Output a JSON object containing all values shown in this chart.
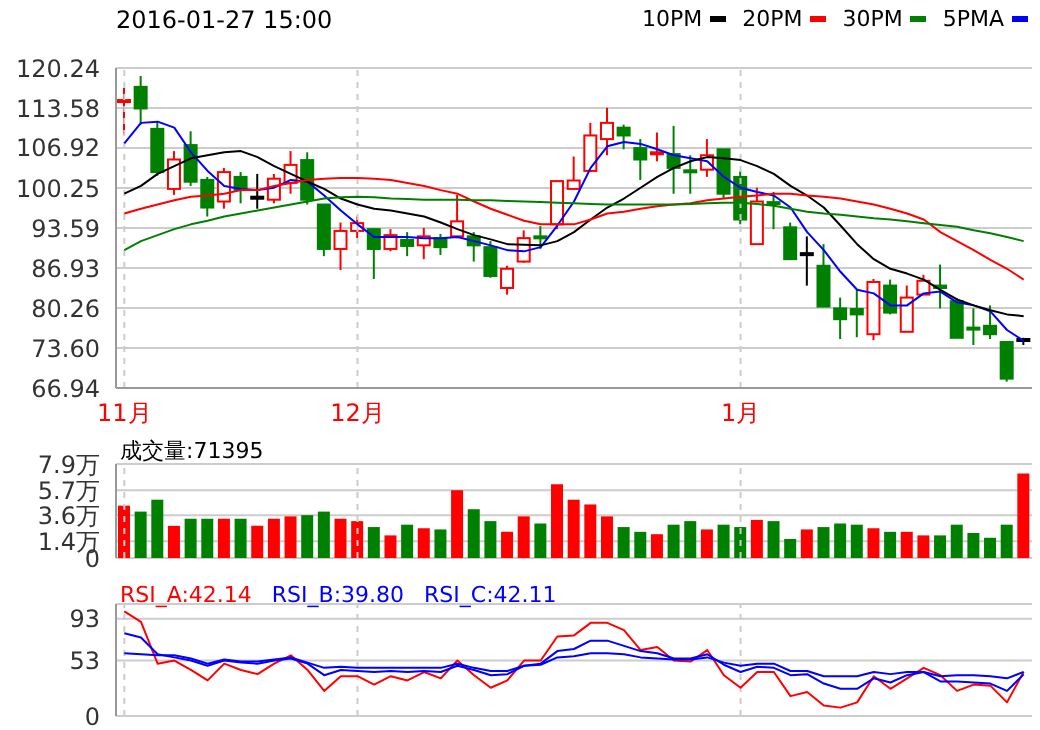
{
  "chart_data": [
    {
      "type": "candlestick",
      "title": "2016-01-27 15:00",
      "categories": [
        "11月",
        null,
        null,
        null,
        null,
        null,
        null,
        null,
        null,
        null,
        null,
        null,
        null,
        null,
        "12月",
        null,
        null,
        null,
        null,
        null,
        null,
        null,
        null,
        null,
        null,
        null,
        null,
        null,
        null,
        null,
        null,
        null,
        null,
        null,
        null,
        null,
        null,
        "1月",
        null,
        null,
        null,
        null,
        null,
        null,
        null,
        null,
        null,
        null,
        null,
        null,
        null,
        null,
        null,
        null,
        null
      ],
      "ohlc": [
        [
          114.9,
          116.9,
          109.2,
          114.9
        ],
        [
          117.1,
          118.9,
          110.8,
          113.5
        ],
        [
          110.1,
          111.3,
          102.3,
          102.9
        ],
        [
          100.1,
          106.4,
          99.1,
          105.0
        ],
        [
          107.4,
          109.7,
          100.6,
          101.3
        ],
        [
          101.6,
          102.1,
          95.5,
          97.0
        ],
        [
          98.0,
          103.6,
          96.8,
          102.9
        ],
        [
          102.1,
          102.9,
          97.7,
          99.9
        ],
        [
          98.8,
          102.6,
          96.8,
          98.8
        ],
        [
          98.3,
          102.6,
          97.7,
          101.8
        ],
        [
          101.1,
          106.4,
          99.3,
          104.1
        ],
        [
          104.9,
          106.2,
          97.5,
          98.3
        ],
        [
          97.5,
          97.5,
          88.9,
          90.1
        ],
        [
          90.1,
          94.5,
          86.6,
          93.1
        ],
        [
          93.1,
          95.5,
          91.9,
          94.4
        ],
        [
          93.4,
          93.4,
          85.1,
          90.1
        ],
        [
          90.1,
          93.4,
          89.7,
          92.4
        ],
        [
          91.6,
          92.9,
          88.9,
          90.6
        ],
        [
          90.7,
          93.6,
          88.4,
          92.2
        ],
        [
          91.9,
          92.6,
          89.1,
          90.4
        ],
        [
          92.2,
          99.1,
          91.9,
          94.7
        ],
        [
          92.2,
          92.9,
          88.0,
          90.7
        ],
        [
          90.4,
          91.4,
          85.3,
          85.6
        ],
        [
          83.6,
          87.3,
          82.5,
          86.8
        ],
        [
          88.0,
          93.2,
          87.8,
          91.9
        ],
        [
          92.2,
          93.9,
          90.1,
          91.9
        ],
        [
          94.2,
          101.4,
          93.4,
          101.4
        ],
        [
          100.1,
          105.5,
          100.1,
          101.5
        ],
        [
          103.1,
          111.1,
          102.9,
          109.0
        ],
        [
          108.4,
          113.6,
          105.7,
          111.1
        ],
        [
          110.3,
          110.8,
          106.7,
          109.0
        ],
        [
          106.9,
          108.4,
          101.6,
          105.0
        ],
        [
          105.9,
          109.5,
          104.7,
          106.2
        ],
        [
          105.9,
          110.6,
          99.3,
          103.6
        ],
        [
          103.2,
          105.7,
          99.3,
          103.0
        ],
        [
          103.3,
          108.4,
          102.1,
          105.7
        ],
        [
          106.7,
          106.7,
          98.5,
          99.3
        ],
        [
          102.1,
          103.1,
          94.2,
          95.0
        ],
        [
          90.9,
          100.3,
          90.9,
          98.0
        ],
        [
          97.9,
          99.6,
          93.4,
          97.7
        ],
        [
          93.7,
          94.5,
          88.4,
          88.4
        ],
        [
          89.4,
          92.2,
          84.0,
          89.4
        ],
        [
          87.3,
          90.9,
          80.5,
          80.5
        ],
        [
          80.2,
          82.0,
          75.1,
          78.4
        ],
        [
          80.1,
          83.3,
          75.4,
          79.2
        ],
        [
          75.9,
          85.1,
          74.9,
          84.6
        ],
        [
          84.0,
          85.0,
          79.2,
          79.5
        ],
        [
          76.3,
          84.0,
          76.3,
          82.0
        ],
        [
          82.5,
          85.8,
          82.5,
          84.8
        ],
        [
          84.0,
          87.5,
          80.2,
          83.6
        ],
        [
          81.4,
          81.9,
          75.3,
          75.3
        ],
        [
          77.0,
          80.2,
          74.1,
          76.9
        ],
        [
          77.3,
          80.7,
          75.1,
          75.9
        ],
        [
          74.6,
          74.6,
          68.0,
          68.5
        ],
        [
          75.1,
          75.3,
          74.1,
          75.1
        ]
      ],
      "colors": [
        "#ff0000",
        "#008000",
        "#008000",
        "#ff0000",
        "#008000",
        "#008000",
        "#ff0000",
        "#008000",
        "#000000",
        "#ff0000",
        "#ff0000",
        "#008000",
        "#008000",
        "#ff0000",
        "#ff0000",
        "#008000",
        "#ff0000",
        "#008000",
        "#ff0000",
        "#008000",
        "#ff0000",
        "#008000",
        "#008000",
        "#ff0000",
        "#ff0000",
        "#008000",
        "#ff0000",
        "#ff0000",
        "#ff0000",
        "#ff0000",
        "#008000",
        "#008000",
        "#ff0000",
        "#008000",
        "#008000",
        "#ff0000",
        "#008000",
        "#008000",
        "#ff0000",
        "#008000",
        "#008000",
        "#000000",
        "#008000",
        "#008000",
        "#008000",
        "#ff0000",
        "#008000",
        "#ff0000",
        "#ff0000",
        "#008000",
        "#008000",
        "#008000",
        "#008000",
        "#008000",
        "#000000"
      ],
      "series": [
        {
          "name": "5PMA",
          "type": "line",
          "color": "#0000ff",
          "values": [
            107.7,
            111.1,
            111.3,
            110.3,
            106.2,
            103.1,
            100.6,
            100.1,
            99.9,
            100.3,
            101.6,
            101.3,
            99.0,
            96.5,
            94.2,
            92.1,
            92.1,
            92.1,
            91.9,
            91.9,
            92.1,
            91.4,
            90.7,
            89.9,
            89.7,
            90.4,
            94.0,
            98.0,
            103.6,
            107.2,
            107.9,
            107.6,
            106.7,
            105.7,
            105.2,
            104.7,
            102.1,
            100.3,
            99.6,
            99.0,
            97.0,
            92.9,
            89.9,
            86.3,
            83.3,
            82.7,
            80.7,
            80.7,
            82.7,
            83.0,
            81.2,
            80.7,
            79.7,
            76.6,
            74.8
          ]
        },
        {
          "name": "10PM",
          "type": "line",
          "color": "#000000",
          "values": [
            99.3,
            100.6,
            102.6,
            103.9,
            105.2,
            105.7,
            106.2,
            106.4,
            105.4,
            103.9,
            102.6,
            101.3,
            100.1,
            98.5,
            97.5,
            96.8,
            96.5,
            96.0,
            95.5,
            94.5,
            93.4,
            92.4,
            91.7,
            90.9,
            90.8,
            90.7,
            91.4,
            92.9,
            95.0,
            97.0,
            98.5,
            100.3,
            102.1,
            103.6,
            104.7,
            105.4,
            105.2,
            104.9,
            103.9,
            102.6,
            100.6,
            99.0,
            97.0,
            94.0,
            90.9,
            88.4,
            86.8,
            86.0,
            85.0,
            83.3,
            81.7,
            80.7,
            79.9,
            79.2,
            78.9
          ]
        },
        {
          "name": "20PM",
          "type": "line",
          "color": "#ff0000",
          "values": [
            96.0,
            96.8,
            97.5,
            98.2,
            98.8,
            99.0,
            99.3,
            99.9,
            99.9,
            100.6,
            101.1,
            101.6,
            101.8,
            101.9,
            101.9,
            101.8,
            101.6,
            101.1,
            100.6,
            99.9,
            99.3,
            98.0,
            96.8,
            95.8,
            94.8,
            94.2,
            94.2,
            94.2,
            95.0,
            96.0,
            96.3,
            96.8,
            97.2,
            97.5,
            97.7,
            98.2,
            98.5,
            98.8,
            99.0,
            99.3,
            99.3,
            99.0,
            98.8,
            98.5,
            98.0,
            97.5,
            96.8,
            96.0,
            95.0,
            92.9,
            91.4,
            89.9,
            88.3,
            86.8,
            85.0
          ]
        },
        {
          "name": "30PM",
          "type": "line",
          "color": "#008000",
          "values": [
            89.9,
            91.4,
            92.4,
            93.4,
            94.2,
            94.8,
            95.5,
            96.0,
            96.5,
            97.0,
            97.5,
            98.0,
            98.5,
            98.7,
            98.8,
            98.7,
            98.5,
            98.4,
            98.3,
            98.3,
            98.3,
            98.2,
            98.2,
            98.1,
            98.0,
            97.9,
            97.8,
            97.7,
            97.6,
            97.5,
            97.5,
            97.5,
            97.5,
            97.5,
            97.6,
            97.7,
            97.8,
            97.8,
            97.6,
            97.3,
            96.8,
            96.3,
            96.0,
            95.8,
            95.5,
            95.2,
            95.0,
            94.7,
            94.4,
            94.1,
            93.8,
            93.2,
            92.7,
            92.1,
            91.4
          ]
        }
      ],
      "ylim": [
        66.94,
        120.24
      ],
      "yticks": [
        66.94,
        {
          "value": 73.6,
          "label": "73.60"
        },
        80.26,
        86.93,
        93.59,
        100.25,
        106.92,
        113.58,
        120.24
      ],
      "grid": true,
      "legend": "top right"
    },
    {
      "type": "bar",
      "annotations": [
        "成交量:71395"
      ],
      "categories": [
        null,
        null,
        null,
        null,
        null,
        null,
        null,
        null,
        null,
        null,
        null,
        null,
        null,
        null,
        null,
        null,
        null,
        null,
        null,
        null,
        null,
        null,
        null,
        null,
        null,
        null,
        null,
        null,
        null,
        null,
        null,
        null,
        null,
        null,
        null,
        null,
        null,
        null,
        null,
        null,
        null,
        null,
        null,
        null,
        null,
        null,
        null,
        null,
        null,
        null,
        null,
        null,
        null,
        null,
        null
      ],
      "values": [
        4.4,
        3.9,
        4.9,
        2.7,
        3.3,
        3.3,
        3.3,
        3.3,
        2.7,
        3.3,
        3.5,
        3.6,
        3.9,
        3.3,
        3.1,
        2.6,
        1.9,
        2.8,
        2.5,
        2.4,
        5.7,
        4.1,
        3.1,
        2.2,
        3.5,
        2.9,
        6.2,
        4.9,
        4.5,
        3.5,
        2.6,
        2.2,
        2.0,
        2.8,
        3.1,
        2.4,
        2.8,
        2.6,
        3.2,
        3.1,
        1.6,
        2.4,
        2.6,
        2.9,
        2.8,
        2.5,
        2.2,
        2.2,
        1.9,
        1.9,
        2.8,
        2.1,
        1.7,
        2.8,
        7.1
      ],
      "colors": [
        "#ff0000",
        "#008000",
        "#008000",
        "#ff0000",
        "#008000",
        "#008000",
        "#ff0000",
        "#008000",
        "#ff0000",
        "#ff0000",
        "#ff0000",
        "#008000",
        "#008000",
        "#ff0000",
        "#ff0000",
        "#008000",
        "#ff0000",
        "#008000",
        "#ff0000",
        "#008000",
        "#ff0000",
        "#008000",
        "#008000",
        "#ff0000",
        "#ff0000",
        "#008000",
        "#ff0000",
        "#ff0000",
        "#ff0000",
        "#ff0000",
        "#008000",
        "#008000",
        "#ff0000",
        "#008000",
        "#008000",
        "#ff0000",
        "#008000",
        "#008000",
        "#ff0000",
        "#008000",
        "#008000",
        "#ff0000",
        "#008000",
        "#008000",
        "#008000",
        "#ff0000",
        "#008000",
        "#ff0000",
        "#ff0000",
        "#008000",
        "#008000",
        "#008000",
        "#008000",
        "#008000",
        "#ff0000"
      ],
      "ylim": [
        0,
        7.9
      ],
      "yticks": [
        0,
        {
          "value": 1.4,
          "label": "1.4万"
        },
        {
          "value": 3.6,
          "label": "3.6万"
        },
        {
          "value": 5.7,
          "label": "5.7万"
        },
        {
          "value": 7.9,
          "label": "7.9万"
        }
      ],
      "grid": true,
      "tick_labels": "y"
    },
    {
      "type": "line",
      "annotations": [
        "RSI_A:42.14",
        "RSI_B:39.80",
        "RSI_C:42.11"
      ],
      "categories": [
        null,
        null,
        null,
        null,
        null,
        null,
        null,
        null,
        null,
        null,
        null,
        null,
        null,
        null,
        null,
        null,
        null,
        null,
        null,
        null,
        null,
        null,
        null,
        null,
        null,
        null,
        null,
        null,
        null,
        null,
        null,
        null,
        null,
        null,
        null,
        null,
        null,
        null,
        null,
        null,
        null,
        null,
        null,
        null,
        null,
        null,
        null,
        null,
        null,
        null,
        null,
        null,
        null,
        null,
        null
      ],
      "series": [
        {
          "color": "#ff0000",
          "values": [
            100,
            90,
            50,
            53,
            44,
            34,
            50,
            44,
            40,
            50,
            58,
            44,
            24,
            38,
            38,
            30,
            38,
            34,
            42,
            36,
            53,
            39,
            27,
            34,
            53,
            53,
            76,
            77,
            89,
            89,
            82,
            63,
            66,
            53,
            52,
            63,
            39,
            27,
            42,
            42,
            19,
            23,
            10,
            8,
            13,
            38,
            26,
            36,
            46,
            39,
            24,
            30,
            29,
            13,
            42.14
          ]
        },
        {
          "color": "#0000ff",
          "values": [
            79,
            75,
            59,
            56,
            53,
            48,
            53,
            51,
            50,
            53,
            55,
            50,
            39,
            44,
            43,
            42,
            43,
            42,
            43,
            42,
            48,
            44,
            39,
            40,
            48,
            50,
            62,
            64,
            72,
            72,
            67,
            62,
            60,
            55,
            55,
            59,
            49,
            42,
            47,
            46,
            39,
            40,
            31,
            26,
            26,
            36,
            32,
            39,
            42,
            33,
            33,
            32,
            31,
            24,
            39.8
          ]
        },
        {
          "color": "#0000ff",
          "values": [
            60,
            59,
            58,
            58,
            55,
            50,
            54,
            52,
            52,
            54,
            56,
            51,
            46,
            47,
            46,
            46,
            46,
            46,
            46,
            46,
            50,
            46,
            43,
            43,
            48,
            49,
            56,
            57,
            60,
            60,
            59,
            56,
            55,
            54,
            54,
            56,
            51,
            48,
            50,
            50,
            43,
            43,
            38,
            38,
            38,
            42,
            40,
            42,
            42,
            38,
            39,
            39,
            38,
            36,
            42.11
          ]
        }
      ],
      "ylim": [
        0,
        107
      ],
      "yticks": [
        0,
        53,
        93
      ],
      "grid": true,
      "tick_labels": "y"
    }
  ]
}
